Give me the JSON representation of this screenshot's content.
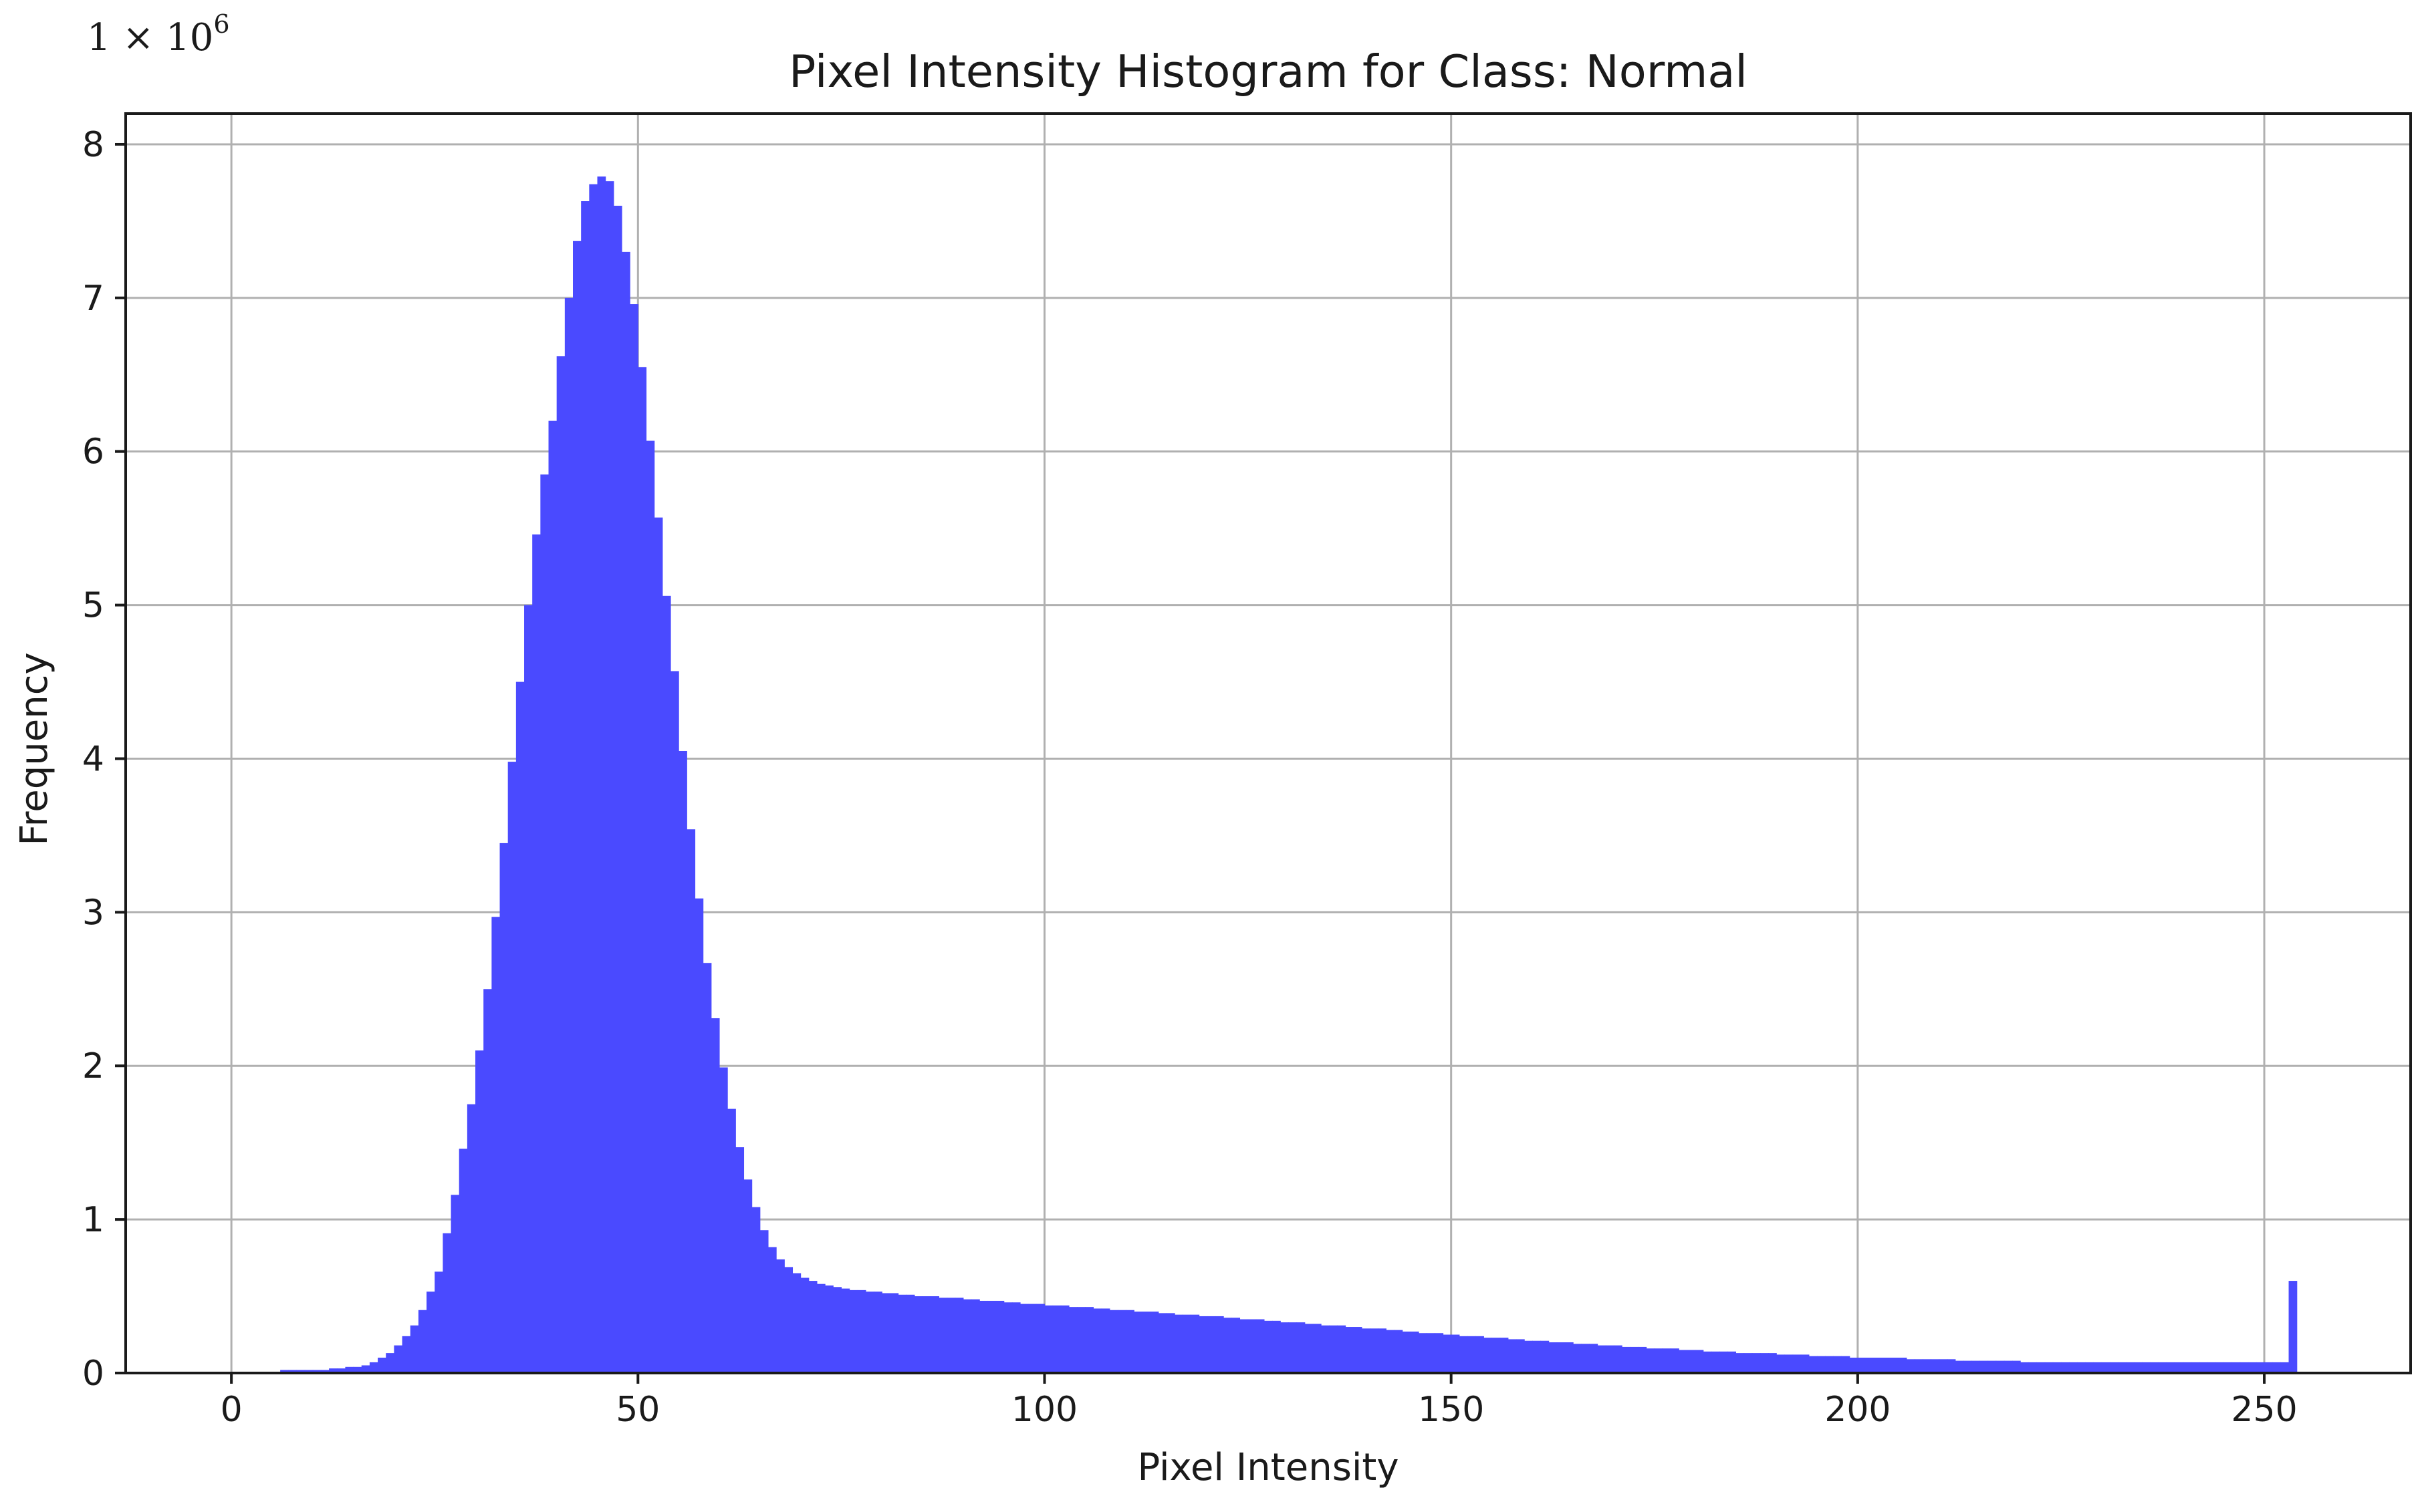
{
  "chart_data": {
    "type": "bar",
    "title": "Pixel Intensity Histogram for Class: Normal",
    "xlabel": "Pixel Intensity",
    "ylabel": "Frequency",
    "y_multiplier": "1 × 10",
    "y_multiplier_exponent": "6",
    "xlim": [
      -13,
      268
    ],
    "ylim": [
      0,
      8.2
    ],
    "x_ticks": [
      0,
      50,
      100,
      150,
      200,
      250
    ],
    "y_ticks": [
      0,
      1,
      2,
      3,
      4,
      5,
      6,
      7,
      8
    ],
    "grid": true,
    "bar_color": "#4a4aff",
    "bin_width": 1,
    "series": [
      {
        "x_start": 6,
        "values": [
          0.02,
          0.02,
          0.02,
          0.02,
          0.02,
          0.02,
          0.03,
          0.03,
          0.04,
          0.04,
          0.05,
          0.07,
          0.1,
          0.13,
          0.18,
          0.24,
          0.31,
          0.41,
          0.53,
          0.66,
          0.91,
          1.16,
          1.46,
          1.75,
          2.1,
          2.5,
          2.97,
          3.45,
          3.98,
          4.5,
          5.0,
          5.46,
          5.85,
          6.2,
          6.62,
          7.0,
          7.37,
          7.63,
          7.74,
          7.79,
          7.76,
          7.6,
          7.3,
          6.96,
          6.55,
          6.07,
          5.57,
          5.06,
          4.57,
          4.05,
          3.54,
          3.09,
          2.67,
          2.31,
          1.99,
          1.72,
          1.47,
          1.26,
          1.08,
          0.93,
          0.82,
          0.74,
          0.69,
          0.65,
          0.62,
          0.6,
          0.58,
          0.57,
          0.56,
          0.55,
          0.54,
          0.54,
          0.53,
          0.53,
          0.52,
          0.52,
          0.51,
          0.51,
          0.5,
          0.5,
          0.5,
          0.49,
          0.49,
          0.49,
          0.48,
          0.48,
          0.47,
          0.47,
          0.47,
          0.46,
          0.46,
          0.45,
          0.45,
          0.45,
          0.44,
          0.44,
          0.44,
          0.43,
          0.43,
          0.43,
          0.42,
          0.42,
          0.41,
          0.41,
          0.41,
          0.4,
          0.4,
          0.4,
          0.39,
          0.39,
          0.38,
          0.38,
          0.38,
          0.37,
          0.37,
          0.37,
          0.36,
          0.36,
          0.35,
          0.35,
          0.35,
          0.34,
          0.34,
          0.33,
          0.33,
          0.33,
          0.32,
          0.32,
          0.31,
          0.31,
          0.31,
          0.3,
          0.3,
          0.29,
          0.29,
          0.29,
          0.28,
          0.28,
          0.27,
          0.27,
          0.26,
          0.26,
          0.26,
          0.25,
          0.25,
          0.24,
          0.24,
          0.24,
          0.23,
          0.23,
          0.23,
          0.22,
          0.22,
          0.21,
          0.21,
          0.21,
          0.2,
          0.2,
          0.2,
          0.19,
          0.19,
          0.19,
          0.18,
          0.18,
          0.18,
          0.17,
          0.17,
          0.17,
          0.16,
          0.16,
          0.16,
          0.16,
          0.15,
          0.15,
          0.15,
          0.14,
          0.14,
          0.14,
          0.14,
          0.13,
          0.13,
          0.13,
          0.13,
          0.13,
          0.12,
          0.12,
          0.12,
          0.12,
          0.11,
          0.11,
          0.11,
          0.11,
          0.11,
          0.1,
          0.1,
          0.1,
          0.1,
          0.1,
          0.1,
          0.1,
          0.09,
          0.09,
          0.09,
          0.09,
          0.09,
          0.09,
          0.08,
          0.08,
          0.08,
          0.08,
          0.08,
          0.08,
          0.08,
          0.08,
          0.07,
          0.07,
          0.07,
          0.07,
          0.07,
          0.07,
          0.07,
          0.07,
          0.07,
          0.07,
          0.07,
          0.07,
          0.07,
          0.07,
          0.07,
          0.07,
          0.07,
          0.07,
          0.07,
          0.07,
          0.07,
          0.07,
          0.07,
          0.07,
          0.07,
          0.07,
          0.07,
          0.07,
          0.07,
          0.07,
          0.07,
          0.07,
          0.07,
          0.6
        ]
      }
    ]
  }
}
